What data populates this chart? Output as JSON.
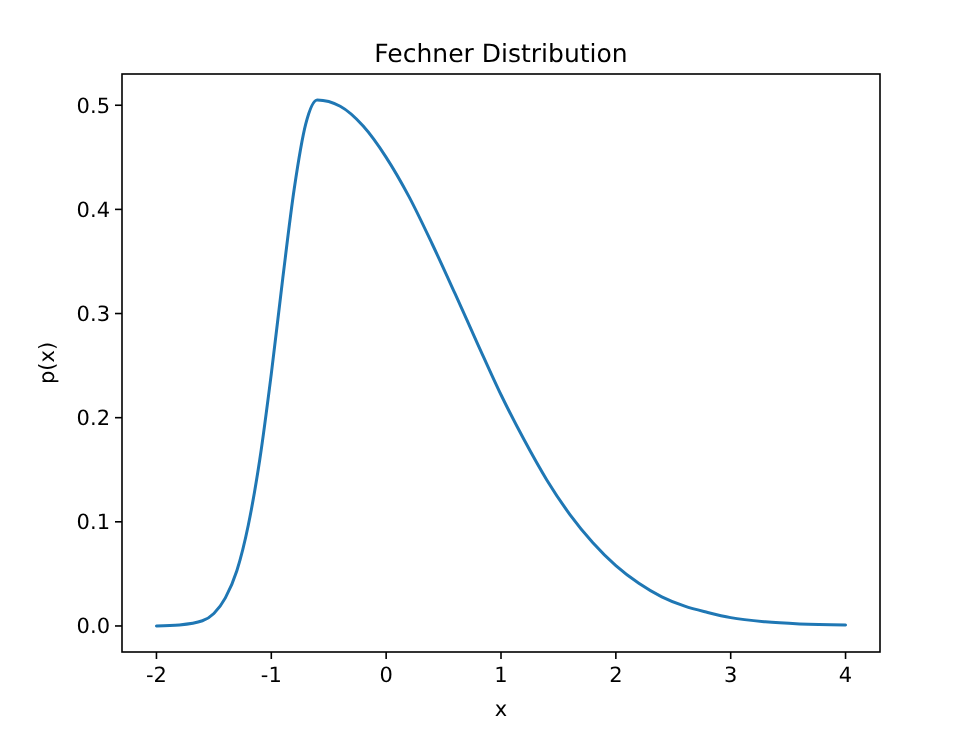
{
  "chart_data": {
    "type": "line",
    "title": "Fechner Distribution",
    "xlabel": "x",
    "ylabel": "p(x)",
    "x": [
      -2,
      -1.8,
      -1.6,
      -1.5,
      -1.4,
      -1.3,
      -1.2,
      -1.1,
      -1.0,
      -0.9,
      -0.8,
      -0.7,
      -0.6,
      -0.4,
      -0.2,
      0,
      0.2,
      0.4,
      0.6,
      0.8,
      1.0,
      1.2,
      1.4,
      1.6,
      1.8,
      2.0,
      2.2,
      2.4,
      2.6,
      2.8,
      3.0,
      3.3,
      3.6,
      4.0
    ],
    "series": [
      {
        "color": "#1f77b4",
        "values": [
          0.0,
          0.001,
          0.005,
          0.012,
          0.027,
          0.053,
          0.097,
          0.16,
          0.242,
          0.334,
          0.42,
          0.482,
          0.505,
          0.499,
          0.48,
          0.45,
          0.412,
          0.367,
          0.319,
          0.27,
          0.222,
          0.179,
          0.14,
          0.107,
          0.08,
          0.058,
          0.041,
          0.028,
          0.019,
          0.013,
          0.008,
          0.004,
          0.002,
          0.001
        ]
      }
    ],
    "xlim": [
      -2.3,
      4.3
    ],
    "xticks": [
      -2,
      -1,
      0,
      1,
      2,
      3,
      4
    ],
    "ylim": [
      -0.025,
      0.53
    ],
    "yticks": [
      {
        "value": 0,
        "label": "0.0"
      },
      0.1,
      0.2,
      0.3,
      0.4,
      0.5
    ],
    "grid": false,
    "line_style": "solid",
    "marker": "none"
  }
}
